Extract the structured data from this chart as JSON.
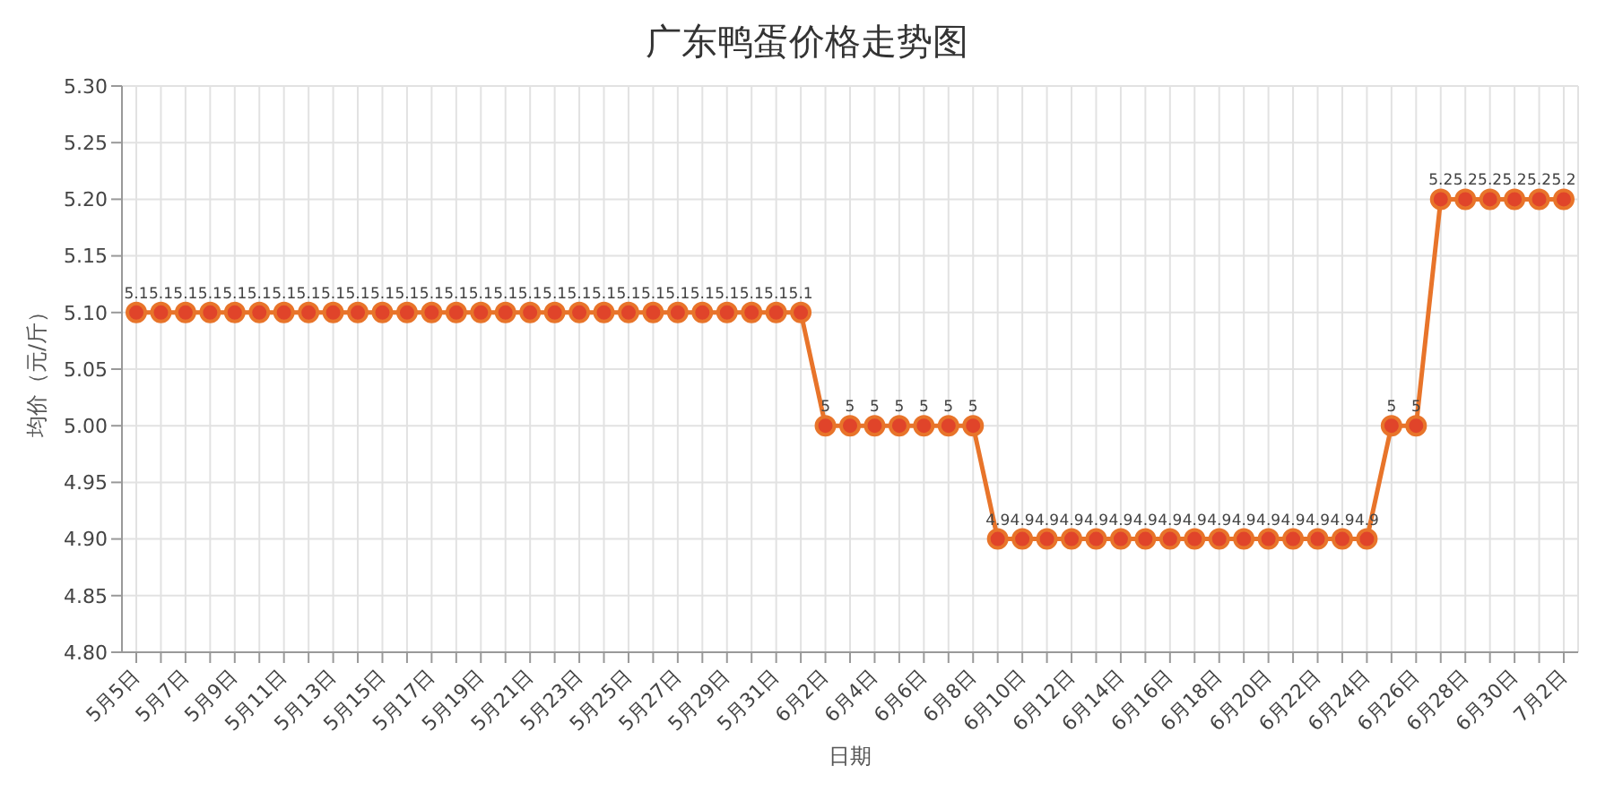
{
  "chart_data": {
    "type": "line",
    "title": "广东鸭蛋价格走势图",
    "xlabel": "日期",
    "ylabel": "均价（元/斤）",
    "categories": [
      "5月5日",
      null,
      "5月7日",
      null,
      "5月9日",
      null,
      "5月11日",
      null,
      "5月13日",
      null,
      "5月15日",
      null,
      "5月17日",
      null,
      "5月19日",
      null,
      "5月21日",
      null,
      "5月23日",
      null,
      "5月25日",
      null,
      "5月27日",
      null,
      "5月29日",
      null,
      "5月31日",
      null,
      "6月2日",
      null,
      "6月4日",
      null,
      "6月6日",
      null,
      "6月8日",
      null,
      "6月10日",
      null,
      "6月12日",
      null,
      "6月14日",
      null,
      "6月16日",
      null,
      "6月18日",
      null,
      "6月20日",
      null,
      "6月22日",
      null,
      "6月24日",
      null,
      "6月26日",
      null,
      "6月28日",
      null,
      "6月30日",
      null,
      "7月2日"
    ],
    "series": [
      {
        "color": "#e8742a",
        "values": [
          5.1,
          5.1,
          5.1,
          5.1,
          5.1,
          5.1,
          5.1,
          5.1,
          5.1,
          5.1,
          5.1,
          5.1,
          5.1,
          5.1,
          5.1,
          5.1,
          5.1,
          5.1,
          5.1,
          5.1,
          5.1,
          5.1,
          5.1,
          5.1,
          5.1,
          5.1,
          5.1,
          5.1,
          5,
          5,
          5,
          5,
          5,
          5,
          5,
          4.9,
          4.9,
          4.9,
          4.9,
          4.9,
          4.9,
          4.9,
          4.9,
          4.9,
          4.9,
          4.9,
          4.9,
          4.9,
          4.9,
          4.9,
          4.9,
          5,
          5,
          5.2,
          5.2,
          5.2,
          5.2,
          5.2,
          5.2
        ]
      }
    ],
    "ylim": [
      4.8,
      5.3
    ],
    "yticks": [
      {
        "value": 4.8,
        "label": "4.80"
      },
      {
        "value": 4.85,
        "label": "4.85"
      },
      {
        "value": 4.9,
        "label": "4.90"
      },
      {
        "value": 4.95,
        "label": "4.95"
      },
      {
        "value": 5,
        "label": "5.00"
      },
      {
        "value": 5.05,
        "label": "5.05"
      },
      {
        "value": 5.1,
        "label": "5.10"
      },
      {
        "value": 5.15,
        "label": "5.15"
      },
      {
        "value": 5.2,
        "label": "5.20"
      },
      {
        "value": 5.25,
        "label": "5.25"
      },
      {
        "value": 5.3,
        "label": "5.30"
      }
    ],
    "grid": true,
    "marker": "circle",
    "line_style": "solid",
    "data_labels": true
  }
}
